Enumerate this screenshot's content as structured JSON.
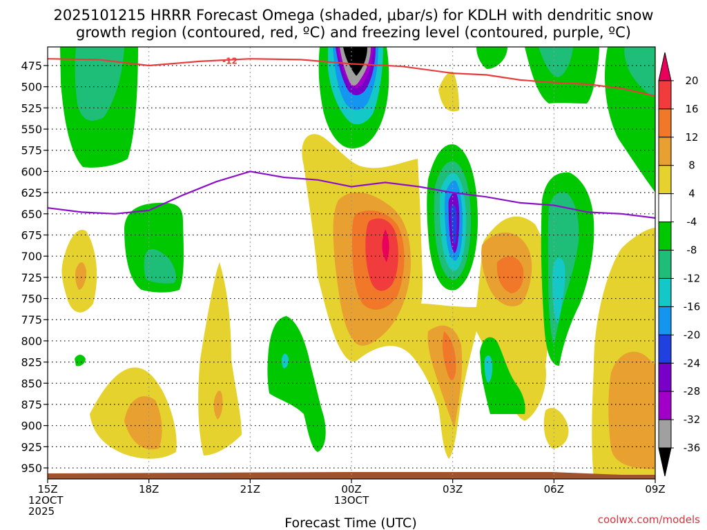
{
  "chart_data": {
    "type": "contour-heatmap",
    "title_line1": "2025101215 HRRR Forecast Omega (shaded, μbar/s) for KDLH with dendritic snow",
    "title_line2": "growth region (contoured, red, ºC) and freezing level (contoured, purple, ºC)",
    "xlabel": "Forecast Time (UTC)",
    "credit": "coolwx.com/models",
    "x_ticks": [
      {
        "hour": 0,
        "lines": [
          "15Z",
          "12OCT",
          "2025"
        ]
      },
      {
        "hour": 3,
        "lines": [
          "18Z"
        ]
      },
      {
        "hour": 6,
        "lines": [
          "21Z"
        ]
      },
      {
        "hour": 9,
        "lines": [
          "00Z",
          "13OCT"
        ]
      },
      {
        "hour": 12,
        "lines": [
          "03Z"
        ]
      },
      {
        "hour": 15,
        "lines": [
          "06Z"
        ]
      },
      {
        "hour": 18,
        "lines": [
          "09Z"
        ]
      }
    ],
    "xlim": [
      0,
      18
    ],
    "y_ticks": [
      475,
      500,
      525,
      550,
      575,
      600,
      625,
      650,
      675,
      700,
      725,
      750,
      775,
      800,
      825,
      850,
      875,
      900,
      925,
      950
    ],
    "ylim": [
      963,
      453
    ],
    "colorbar": {
      "levels": [
        20,
        16,
        12,
        8,
        4,
        -4,
        -8,
        -12,
        -16,
        -20,
        -24,
        -28,
        -32,
        -36
      ],
      "colors": [
        "#e8005a",
        "#f03c3c",
        "#f07828",
        "#e8a030",
        "#e6d22e",
        "#ffffff",
        "#00c800",
        "#1ebe78",
        "#14c8c8",
        "#1496f0",
        "#2040e0",
        "#7800c8",
        "#a000c8",
        "#a0a0a0",
        "#000000"
      ]
    },
    "contour_labels": [
      {
        "text": "-12",
        "hour": 5.4,
        "level": 469
      }
    ],
    "dendritic_line": {
      "name": "-12ºC isotherm (red)",
      "points": [
        [
          0,
          467
        ],
        [
          1.5,
          468
        ],
        [
          3,
          475
        ],
        [
          4.5,
          470
        ],
        [
          6,
          467
        ],
        [
          7.5,
          468
        ],
        [
          9,
          473
        ],
        [
          10.5,
          476
        ],
        [
          12,
          484
        ],
        [
          13,
          486
        ],
        [
          14,
          492
        ],
        [
          15,
          495
        ],
        [
          16,
          497
        ],
        [
          17,
          502
        ],
        [
          18,
          511
        ]
      ]
    },
    "freezing_line": {
      "name": "0ºC freezing level (purple)",
      "points": [
        [
          0,
          643
        ],
        [
          1,
          648
        ],
        [
          2,
          650
        ],
        [
          3,
          646
        ],
        [
          4,
          628
        ],
        [
          5,
          612
        ],
        [
          6,
          600
        ],
        [
          7,
          607
        ],
        [
          8,
          610
        ],
        [
          9,
          618
        ],
        [
          10,
          613
        ],
        [
          11,
          618
        ],
        [
          12,
          625
        ],
        [
          13,
          630
        ],
        [
          14,
          637
        ],
        [
          15,
          640
        ],
        [
          16,
          648
        ],
        [
          17,
          650
        ],
        [
          18,
          655
        ]
      ]
    },
    "terrain_level_hpa": 961
  }
}
